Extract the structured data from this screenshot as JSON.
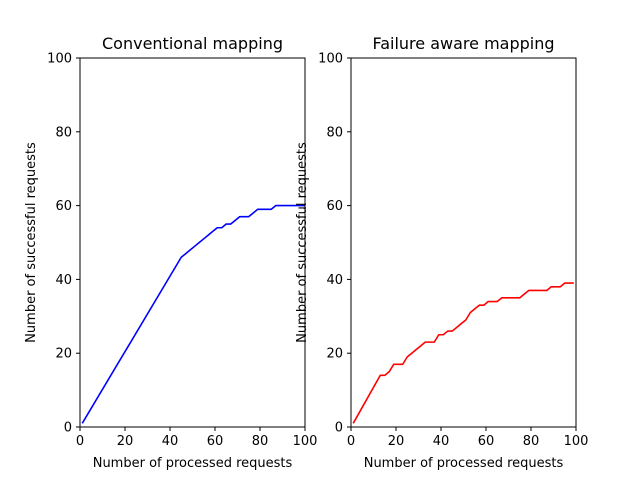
{
  "chart_data": [
    {
      "type": "line",
      "title": "Conventional mapping",
      "xlabel": "Number of processed requests",
      "ylabel": "Number of successful requests",
      "xlim": [
        0,
        100
      ],
      "ylim": [
        0,
        100
      ],
      "xticks": [
        0,
        20,
        40,
        60,
        80,
        100
      ],
      "yticks": [
        0,
        20,
        40,
        60,
        80,
        100
      ],
      "grid": false,
      "series": [
        {
          "color": "#0000ff",
          "x": [
            1,
            45,
            47,
            49,
            51,
            53,
            55,
            57,
            59,
            61,
            63,
            65,
            67,
            69,
            71,
            73,
            75,
            77,
            79,
            81,
            83,
            85,
            87,
            89,
            91,
            93,
            95,
            97,
            99,
            100
          ],
          "y": [
            1,
            46,
            47,
            48,
            49,
            50,
            51,
            52,
            53,
            54,
            54,
            55,
            55,
            56,
            57,
            57,
            57,
            58,
            59,
            59,
            59,
            59,
            60,
            60,
            60,
            60,
            60,
            60,
            60,
            60
          ]
        }
      ]
    },
    {
      "type": "line",
      "title": "Failure aware mapping",
      "xlabel": "Number of processed requests",
      "ylabel": "Number of successful requests",
      "xlim": [
        0,
        100
      ],
      "ylim": [
        0,
        100
      ],
      "xticks": [
        0,
        20,
        40,
        60,
        80,
        100
      ],
      "yticks": [
        0,
        20,
        40,
        60,
        80,
        100
      ],
      "grid": false,
      "series": [
        {
          "color": "#ff0000",
          "x": [
            1,
            13,
            15,
            17,
            19,
            21,
            23,
            25,
            27,
            29,
            31,
            33,
            35,
            37,
            39,
            41,
            43,
            45,
            47,
            49,
            51,
            53,
            55,
            57,
            59,
            61,
            63,
            65,
            67,
            69,
            71,
            73,
            75,
            77,
            79,
            81,
            83,
            85,
            87,
            89,
            91,
            93,
            95,
            97,
            99
          ],
          "y": [
            1,
            14,
            14,
            15,
            17,
            17,
            17,
            19,
            20,
            21,
            22,
            23,
            23,
            23,
            25,
            25,
            26,
            26,
            27,
            28,
            29,
            31,
            32,
            33,
            33,
            34,
            34,
            34,
            35,
            35,
            35,
            35,
            35,
            36,
            37,
            37,
            37,
            37,
            37,
            38,
            38,
            38,
            39,
            39,
            39
          ]
        }
      ]
    }
  ]
}
